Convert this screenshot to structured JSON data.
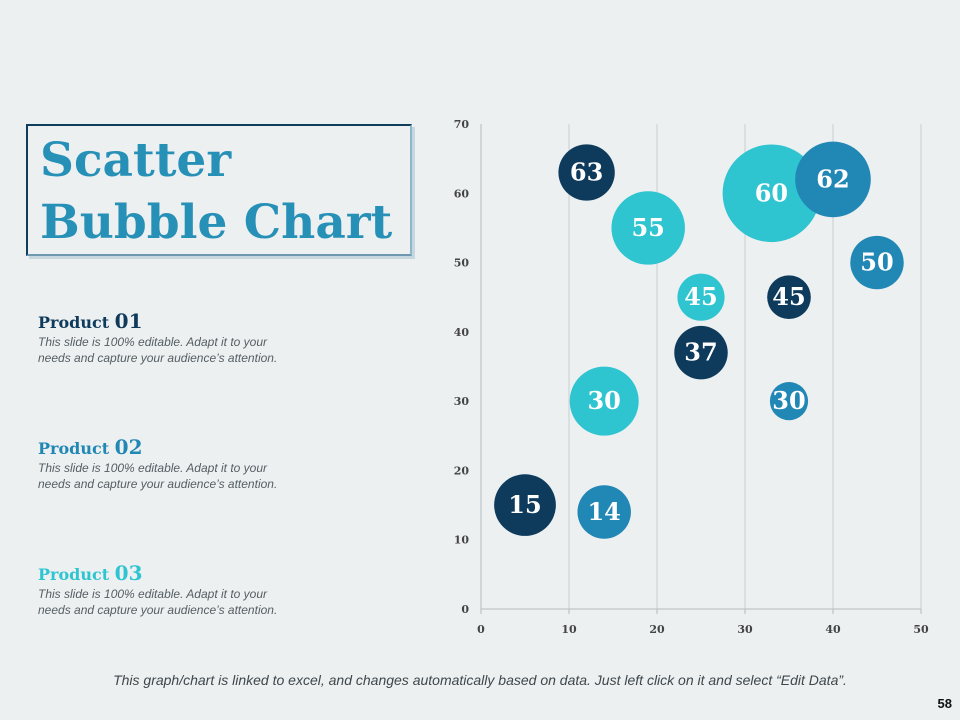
{
  "slide": {
    "title_line1": "Scatter",
    "title_line2": "Bubble Chart",
    "page_number": "58",
    "footer_note": "This graph/chart is linked to excel, and changes automatically based on data. Just left click on it and select “Edit Data”."
  },
  "colors": {
    "background": "#ecf0f1",
    "product1": "#0e3a5c",
    "product2": "#2187b5",
    "product3": "#2ec4d0",
    "title": "#2790b7"
  },
  "products": [
    {
      "name": "Product ",
      "num": "01",
      "color": "#0e3a5c",
      "desc1": "This slide is 100% editable. Adapt it to your",
      "desc2": "needs and capture your audience’s attention."
    },
    {
      "name": "Product ",
      "num": "02",
      "color": "#2187b5",
      "desc1": "This slide is 100% editable. Adapt it to your",
      "desc2": "needs and capture your audience’s attention."
    },
    {
      "name": "Product ",
      "num": "03",
      "color": "#2ec4d0",
      "desc1": "This slide is 100% editable. Adapt it to your",
      "desc2": "needs and capture your audience’s attention."
    }
  ],
  "chart_data": {
    "type": "scatter",
    "subtype": "bubble",
    "title": "",
    "xlabel": "",
    "ylabel": "",
    "xlim": [
      0,
      50
    ],
    "ylim": [
      0,
      70
    ],
    "xticks": [
      0,
      10,
      20,
      30,
      40,
      50
    ],
    "yticks": [
      0,
      10,
      20,
      30,
      40,
      50,
      60,
      70
    ],
    "grid": "vertical",
    "series": [
      {
        "name": "Product 01",
        "color": "#0e3a5c",
        "points": [
          {
            "x": 12,
            "y": 63,
            "size": 5,
            "label": "63"
          },
          {
            "x": 35,
            "y": 45,
            "size": 3,
            "label": "45"
          },
          {
            "x": 25,
            "y": 37,
            "size": 4.5,
            "label": "37"
          },
          {
            "x": 5,
            "y": 15,
            "size": 6,
            "label": "15"
          }
        ]
      },
      {
        "name": "Product 02",
        "color": "#2187b5",
        "points": [
          {
            "x": 40,
            "y": 62,
            "size": 9,
            "label": "62"
          },
          {
            "x": 45,
            "y": 50,
            "size": 4.5,
            "label": "50"
          },
          {
            "x": 35,
            "y": 30,
            "size": 2.3,
            "label": "30"
          },
          {
            "x": 14,
            "y": 14,
            "size": 4.5,
            "label": "14"
          }
        ]
      },
      {
        "name": "Product 03",
        "color": "#2ec4d0",
        "points": [
          {
            "x": 33,
            "y": 60,
            "size": 15,
            "label": "60"
          },
          {
            "x": 19,
            "y": 55,
            "size": 8.5,
            "label": "55"
          },
          {
            "x": 25,
            "y": 45,
            "size": 3.5,
            "label": "45"
          },
          {
            "x": 14,
            "y": 30,
            "size": 7.5,
            "label": "30"
          }
        ]
      }
    ]
  }
}
